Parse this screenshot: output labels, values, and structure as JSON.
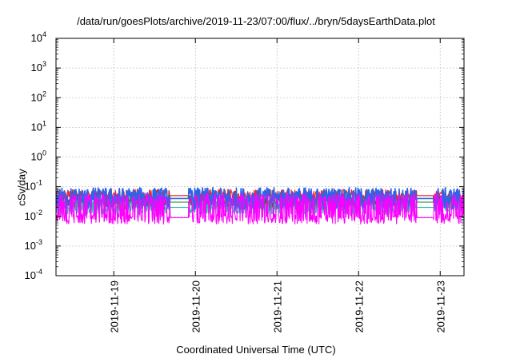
{
  "chart_data": {
    "type": "line",
    "title": "/data/run/goesPlots/archive/2019-11-23/07:00/flux/../bryn/5daysEarthData.plot",
    "xlabel": "Coordinated Universal Time (UTC)",
    "ylabel": "cSv/day",
    "yscale": "log",
    "ylim": [
      0.0001,
      10000
    ],
    "xlim": [
      "2019-11-18T07:00",
      "2019-11-23T07:00"
    ],
    "grid": true,
    "legend": "none",
    "y_ticks": [
      {
        "base": "10",
        "exp": "-4"
      },
      {
        "base": "10",
        "exp": "-3"
      },
      {
        "base": "10",
        "exp": "-2"
      },
      {
        "base": "10",
        "exp": "-1"
      },
      {
        "base": "10",
        "exp": "0"
      },
      {
        "base": "10",
        "exp": "1"
      },
      {
        "base": "10",
        "exp": "2"
      },
      {
        "base": "10",
        "exp": "3"
      },
      {
        "base": "10",
        "exp": "4"
      }
    ],
    "x_ticks": [
      "2019-11-19",
      "2019-11-20",
      "2019-11-21",
      "2019-11-22",
      "2019-11-23"
    ],
    "data_gaps": [
      [
        "2019-11-19T16:30",
        "2019-11-19T22:00"
      ],
      [
        "2019-11-22T17:00",
        "2019-11-22T22:00"
      ]
    ],
    "series": [
      {
        "color": "#e8231f",
        "low": 0.03,
        "high": 0.09,
        "typical": 0.05
      },
      {
        "color": "#1c7a1c",
        "low": 0.015,
        "high": 0.05,
        "typical": 0.03
      },
      {
        "color": "#25c0b4",
        "low": 0.012,
        "high": 0.04,
        "typical": 0.02
      },
      {
        "color": "#2b66e8",
        "low": 0.015,
        "high": 0.1,
        "typical": 0.04
      },
      {
        "color": "#ff00ff",
        "low": 0.0055,
        "high": 0.06,
        "typical": 0.009
      }
    ]
  }
}
